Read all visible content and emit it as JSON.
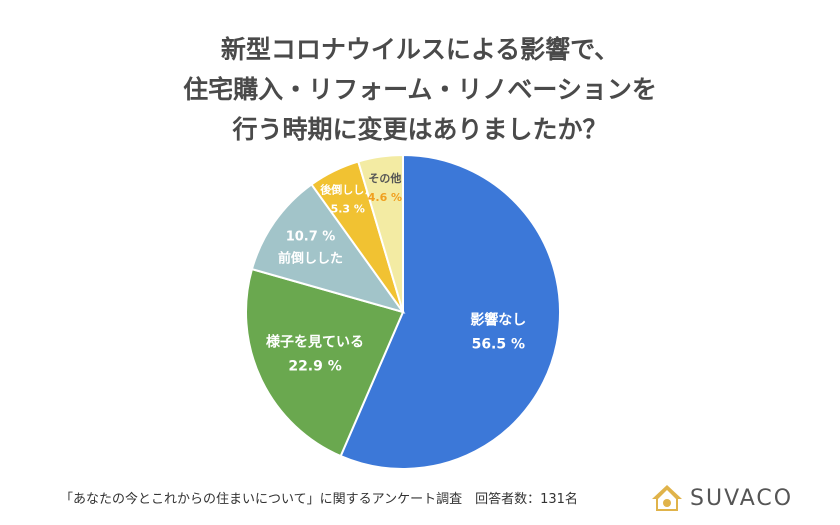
{
  "title": {
    "line1": "新型コロナウイルスによる影響で、",
    "line2": "住宅購入・リフォーム・リノベーションを",
    "line3": "行う時期に変更はありましたか？"
  },
  "footer": {
    "survey": "「あなたの今とこれからの住まいについて」に関するアンケート調査　回答者数：131名"
  },
  "logo": {
    "text": "SUVACO",
    "icon": "house-icon"
  },
  "chart_data": {
    "type": "pie",
    "start_angle_deg": 0,
    "direction": "clockwise",
    "slices": [
      {
        "label": "影響なし",
        "value": 56.5,
        "value_label": "56.5 %",
        "color": "#3c78d8"
      },
      {
        "label": "様子を見ている",
        "value": 22.9,
        "value_label": "22.9 %",
        "color": "#6aa84f"
      },
      {
        "label": "前倒しした",
        "value": 10.7,
        "value_label": "10.7 %",
        "color": "#a2c4c9"
      },
      {
        "label": "後倒しした",
        "value": 5.3,
        "value_label": "5.3 %",
        "color": "#f1c232"
      },
      {
        "label": "その他",
        "value": 4.6,
        "value_label": "4.6 %",
        "color": "#f3eba3"
      }
    ]
  }
}
